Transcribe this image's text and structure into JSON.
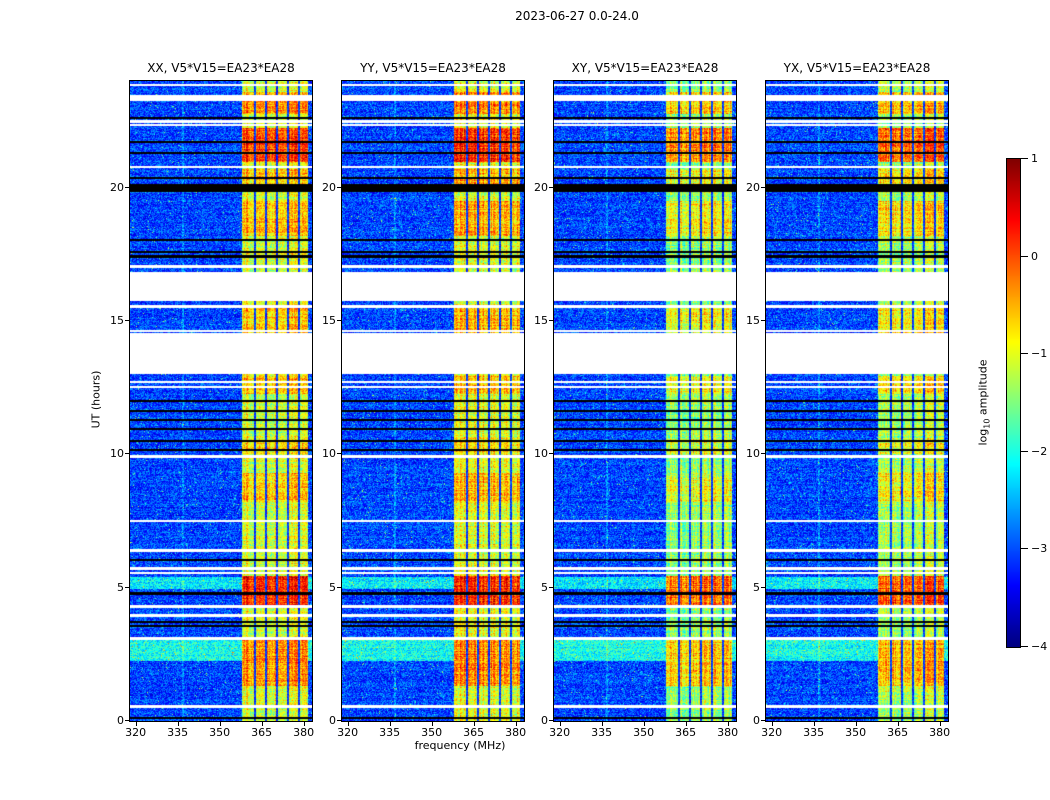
{
  "suptitle": "2023-06-27 0.0-24.0",
  "chart_data": {
    "type": "heatmap",
    "description": "Four dynamic-spectrum (time vs frequency) panels of log10 amplitude for polarization products XX, YY, XY, YX of baseline V5*V15=EA23*EA28, with jet colormap, shared time gaps (white), flagged rows (black) and a strong RFI band near 358-381 MHz.",
    "panels": [
      {
        "title": "XX, V5*V15=EA23*EA28",
        "pol": "XX",
        "level_offset": 0.0
      },
      {
        "title": "YY, V5*V15=EA23*EA28",
        "pol": "YY",
        "level_offset": 0.05
      },
      {
        "title": "XY, V5*V15=EA23*EA28",
        "pol": "XY",
        "level_offset": -0.35
      },
      {
        "title": "YX, V5*V15=EA23*EA28",
        "pol": "YX",
        "level_offset": -0.25
      }
    ],
    "x": {
      "label": "frequency (MHz)",
      "range": [
        318,
        383
      ],
      "ticks": [
        320,
        335,
        350,
        365,
        380
      ],
      "tick_labels": [
        "320",
        "335",
        "350",
        "365",
        "380"
      ]
    },
    "y": {
      "label": "UT (hours)",
      "range": [
        0,
        24
      ],
      "ticks": [
        0,
        5,
        10,
        15,
        20
      ],
      "tick_labels": [
        "0",
        "5",
        "10",
        "15",
        "20"
      ]
    },
    "colorbar": {
      "label": "log10 amplitude",
      "label_parts": {
        "pre": "log",
        "sub": "10",
        "post": " amplitude"
      },
      "range": [
        -4,
        1
      ],
      "tick_values": [
        1,
        0,
        -1,
        -2,
        -3,
        -4
      ],
      "tick_labels": [
        "1",
        "0",
        "−1",
        "−2",
        "−3",
        "−4"
      ],
      "colormap": "jet"
    },
    "features": {
      "background": {
        "level": -3.05,
        "noise": 0.5
      },
      "rfi_band": {
        "f_min": 358,
        "f_max": 381.5,
        "level": -1.05,
        "noise": 0.45
      },
      "band_notches_mhz": [
        362.5,
        366.5,
        370.5,
        374.5,
        378.5
      ],
      "light_columns_mhz": [
        337
      ],
      "bursts": [
        {
          "t0": 1.3,
          "t1": 3.05,
          "boost": 0.75
        },
        {
          "t0": 4.35,
          "t1": 5.45,
          "boost": 1.25
        },
        {
          "t0": 8.2,
          "t1": 9.3,
          "boost": 0.45
        },
        {
          "t0": 10.0,
          "t1": 10.6,
          "boost": 0.3
        },
        {
          "t0": 12.25,
          "t1": 12.95,
          "boost": 0.5
        },
        {
          "t0": 14.55,
          "t1": 15.5,
          "boost": 0.5
        },
        {
          "t0": 18.2,
          "t1": 19.5,
          "boost": 0.55
        },
        {
          "t0": 20.15,
          "t1": 20.7,
          "boost": 0.5
        },
        {
          "t0": 20.95,
          "t1": 22.25,
          "boost": 1.15
        },
        {
          "t0": 22.75,
          "t1": 23.6,
          "boost": 0.75
        }
      ],
      "cyan_bands": [
        {
          "t0": 2.25,
          "t1": 3.05,
          "boost": 1.0
        },
        {
          "t0": 4.95,
          "t1": 5.4,
          "boost": 0.85
        }
      ],
      "white_gaps": [
        [
          13.0,
          14.55
        ],
        [
          15.75,
          16.85
        ]
      ],
      "white_rows": [
        0.55,
        3.1,
        3.95,
        4.3,
        5.55,
        5.72,
        6.4,
        7.5,
        9.92,
        12.52,
        12.72,
        14.62,
        15.55,
        17.05,
        20.78,
        22.35,
        22.48,
        23.3,
        23.42,
        23.85
      ],
      "black_bands": [
        [
          19.82,
          20.12
        ]
      ],
      "black_rows": [
        0.12,
        3.55,
        3.72,
        4.78,
        6.05,
        10.15,
        10.5,
        10.95,
        11.3,
        11.62,
        12.0,
        17.42,
        17.58,
        18.05,
        20.35,
        21.3,
        21.7,
        22.62
      ]
    }
  }
}
